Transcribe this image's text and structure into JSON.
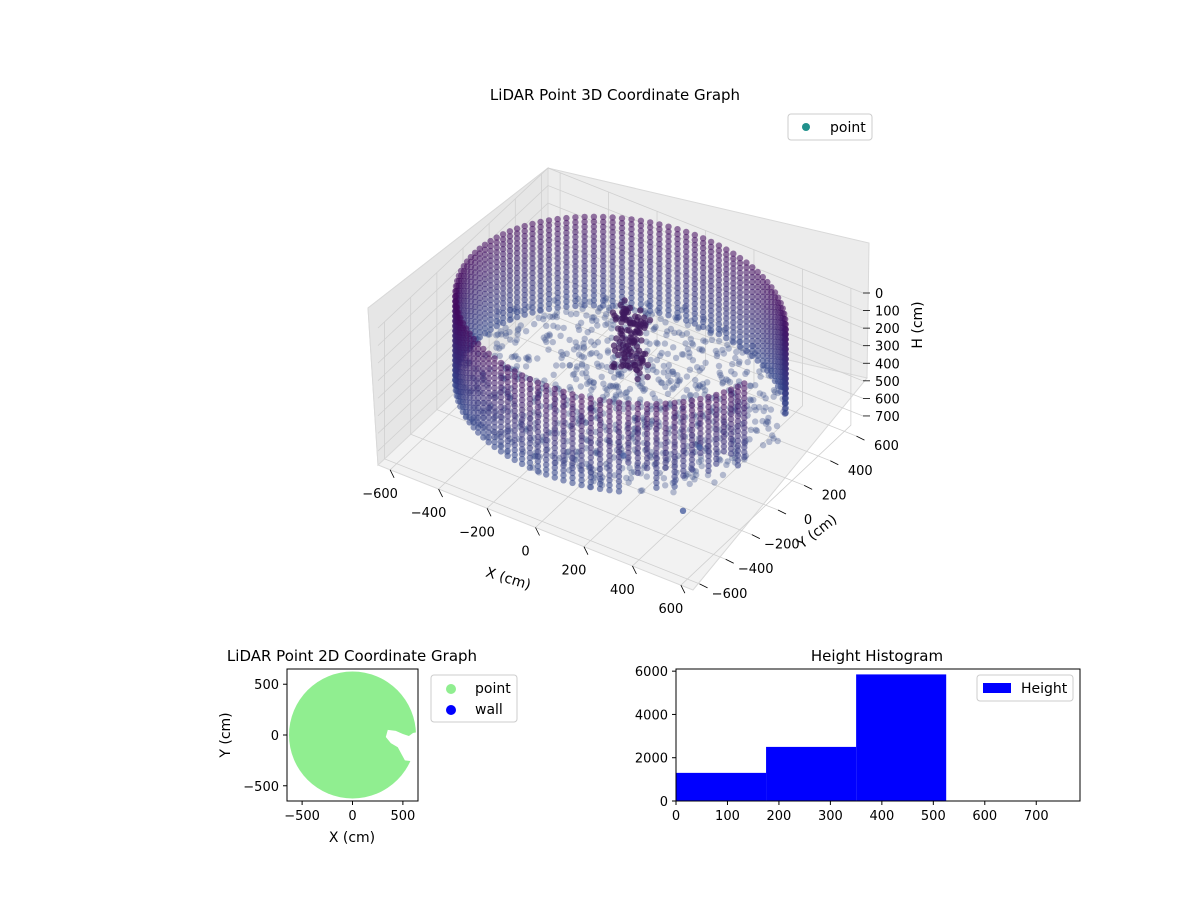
{
  "chart_data": [
    {
      "type": "scatter",
      "title": "LiDAR Point 3D Coordinate Graph",
      "xlabel": "X (cm)",
      "ylabel": "Y (cm)",
      "zlabel": "H (cm)",
      "xlim": [
        -650,
        650
      ],
      "ylim": [
        -650,
        650
      ],
      "zlim": [
        0,
        780
      ],
      "z_inverted": true,
      "xticks": [
        -600,
        -400,
        -200,
        0,
        200,
        400,
        600
      ],
      "yticks": [
        -600,
        -400,
        -200,
        0,
        200,
        400,
        600
      ],
      "zticks": [
        0,
        100,
        200,
        300,
        400,
        500,
        600,
        700
      ],
      "grid": true,
      "legend": {
        "position": "top-right",
        "entries": [
          "point"
        ]
      },
      "series": [
        {
          "name": "point",
          "color": "#21918c",
          "colormap": "viridis",
          "wall": {
            "radius": 600,
            "h_top": 0,
            "h_bottom": 520,
            "gap_angle_deg": [
              -10,
              20
            ]
          },
          "floor_points": "scattered points on a disk of radius ~600 between H 400 and H 520",
          "outliers": [
            {
              "x": 420,
              "y": -300,
              "h": 700
            },
            {
              "x": 380,
              "y": -100,
              "h": 500
            },
            {
              "x": 120,
              "y": -200,
              "h": 620
            }
          ]
        }
      ]
    },
    {
      "type": "scatter",
      "title": "LiDAR Point 2D Coordinate Graph",
      "xlabel": "X (cm)",
      "ylabel": "Y (cm)",
      "xlim": [
        -650,
        650
      ],
      "ylim": [
        -650,
        650
      ],
      "xticks": [
        -500,
        0,
        500
      ],
      "yticks": [
        500,
        0,
        -500
      ],
      "legend": {
        "position": "outside-right",
        "entries": [
          "point",
          "wall"
        ]
      },
      "series": [
        {
          "name": "point",
          "color": "#90ee90",
          "shape": "filled disk radius ~630 with notch on right side near y=0"
        },
        {
          "name": "wall",
          "color": "#0000ff"
        }
      ]
    },
    {
      "type": "bar",
      "title": "Height Histogram",
      "xlabel": "",
      "ylabel": "",
      "xlim": [
        0,
        785
      ],
      "ylim": [
        0,
        6100
      ],
      "xticks": [
        0,
        100,
        200,
        300,
        400,
        500,
        600,
        700
      ],
      "yticks": [
        0,
        2000,
        4000,
        6000
      ],
      "legend": {
        "position": "top-right",
        "entries": [
          "Height"
        ]
      },
      "bins": [
        {
          "from": 0,
          "to": 175,
          "count": 1300
        },
        {
          "from": 175,
          "to": 350,
          "count": 2500
        },
        {
          "from": 350,
          "to": 525,
          "count": 5850
        },
        {
          "from": 525,
          "to": 700,
          "count": 0
        }
      ],
      "series": [
        {
          "name": "Height",
          "color": "#0000ff"
        }
      ]
    }
  ]
}
